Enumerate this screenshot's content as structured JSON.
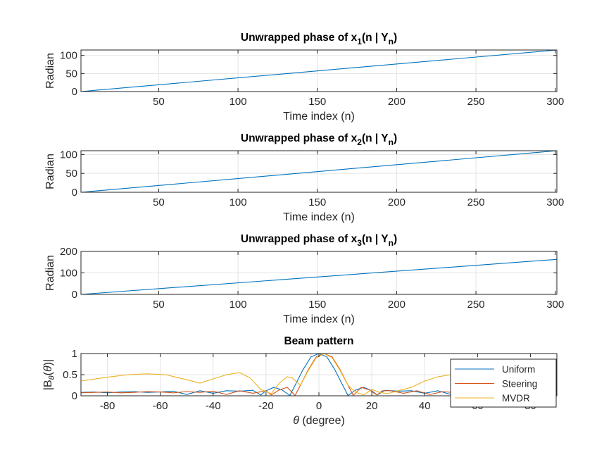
{
  "chart_data": [
    {
      "type": "line",
      "title": "Unwrapped phase of x1(n | Yn)",
      "title_parts": {
        "pre": "Unwrapped phase of x",
        "sub1": "1",
        "mid": "(n | Y",
        "sub2": "n",
        "post": ")"
      },
      "xlabel": "Time index (n)",
      "ylabel": "Radian",
      "xlim": [
        1,
        301
      ],
      "ylim": [
        0,
        115
      ],
      "xticks": [
        50,
        100,
        150,
        200,
        250,
        300
      ],
      "yticks": [
        0,
        50,
        100
      ],
      "grid": true,
      "series": [
        {
          "color": "#0072BD",
          "x": [
            1,
            301
          ],
          "y": [
            0,
            115
          ]
        }
      ]
    },
    {
      "type": "line",
      "title": "Unwrapped phase of x2(n | Yn)",
      "title_parts": {
        "pre": "Unwrapped phase of x",
        "sub1": "2",
        "mid": "(n | Y",
        "sub2": "n",
        "post": ")"
      },
      "xlabel": "Time index (n)",
      "ylabel": "Radian",
      "xlim": [
        1,
        301
      ],
      "ylim": [
        0,
        110
      ],
      "xticks": [
        50,
        100,
        150,
        200,
        250,
        300
      ],
      "yticks": [
        0,
        50,
        100
      ],
      "grid": true,
      "series": [
        {
          "color": "#0072BD",
          "x": [
            1,
            301
          ],
          "y": [
            0,
            110
          ]
        }
      ]
    },
    {
      "type": "line",
      "title": "Unwrapped phase of x3(n | Yn)",
      "title_parts": {
        "pre": "Unwrapped phase of x",
        "sub1": "3",
        "mid": "(n | Y",
        "sub2": "n",
        "post": ")"
      },
      "xlabel": "Time index (n)",
      "ylabel": "Radian",
      "xlim": [
        1,
        301
      ],
      "ylim": [
        0,
        200
      ],
      "xticks": [
        50,
        100,
        150,
        200,
        250,
        300
      ],
      "yticks": [
        0,
        100,
        200
      ],
      "grid": true,
      "series": [
        {
          "color": "#0072BD",
          "x": [
            1,
            301
          ],
          "y": [
            0,
            163
          ]
        }
      ]
    },
    {
      "type": "line",
      "title": "Beam pattern",
      "xlabel": "θ (degree)",
      "ylabel": "|Bθ(θ)|",
      "xlim": [
        -90,
        90
      ],
      "ylim": [
        0,
        1
      ],
      "xticks": [
        -80,
        -60,
        -40,
        -20,
        0,
        20,
        40,
        60,
        80
      ],
      "yticks": [
        0,
        0.5,
        1
      ],
      "grid": true,
      "legend": "top-right",
      "series": [
        {
          "name": "Uniform",
          "color": "#0072BD",
          "x": [
            -90,
            -85,
            -80,
            -75,
            -70,
            -65,
            -60,
            -55,
            -50,
            -45,
            -40,
            -35,
            -30,
            -25,
            -22,
            -20,
            -17,
            -14,
            -11,
            -9,
            -6,
            -3,
            0,
            3,
            6,
            9,
            11,
            14,
            17,
            20,
            22,
            25,
            30,
            35,
            40,
            45,
            50,
            55,
            60,
            65,
            70,
            75,
            80,
            85,
            90
          ],
          "y": [
            0.08,
            0.09,
            0.07,
            0.09,
            0.1,
            0.08,
            0.09,
            0.11,
            0.03,
            0.12,
            0.06,
            0.12,
            0.11,
            0.13,
            0.02,
            0.12,
            0.2,
            0.14,
            0.01,
            0.25,
            0.62,
            0.92,
            1.0,
            0.92,
            0.62,
            0.25,
            0.01,
            0.14,
            0.2,
            0.12,
            0.02,
            0.13,
            0.11,
            0.12,
            0.06,
            0.12,
            0.03,
            0.11,
            0.09,
            0.08,
            0.1,
            0.09,
            0.07,
            0.09,
            0.08
          ]
        },
        {
          "name": "Steering",
          "color": "#D95319",
          "x": [
            -90,
            -85,
            -80,
            -75,
            -70,
            -65,
            -60,
            -55,
            -50,
            -45,
            -40,
            -35,
            -30,
            -25,
            -20,
            -18,
            -15,
            -12,
            -9,
            -7,
            -4,
            -1,
            2,
            5,
            8,
            11,
            13,
            16,
            19,
            22,
            24,
            27,
            32,
            37,
            42,
            47,
            52,
            57,
            62,
            67,
            72,
            77,
            82,
            87,
            90
          ],
          "y": [
            0.07,
            0.08,
            0.09,
            0.07,
            0.08,
            0.1,
            0.09,
            0.07,
            0.1,
            0.08,
            0.11,
            0.03,
            0.12,
            0.06,
            0.12,
            0.02,
            0.14,
            0.2,
            0.01,
            0.25,
            0.62,
            0.92,
            1.0,
            0.92,
            0.62,
            0.25,
            0.01,
            0.2,
            0.14,
            0.02,
            0.12,
            0.12,
            0.06,
            0.12,
            0.03,
            0.1,
            0.07,
            0.09,
            0.1,
            0.08,
            0.07,
            0.09,
            0.08,
            0.07,
            0.08
          ]
        },
        {
          "name": "MVDR",
          "color": "#EDB120",
          "x": [
            -90,
            -80,
            -72,
            -65,
            -58,
            -50,
            -45,
            -40,
            -35,
            -30,
            -26,
            -22,
            -18,
            -15,
            -12,
            -10,
            -7,
            -4,
            -1,
            2,
            5,
            8,
            11,
            14,
            17,
            20,
            23,
            26,
            30,
            35,
            40,
            45,
            50,
            55,
            60,
            65,
            70,
            75,
            80,
            85,
            90
          ],
          "y": [
            0.35,
            0.44,
            0.5,
            0.52,
            0.5,
            0.38,
            0.3,
            0.4,
            0.5,
            0.55,
            0.42,
            0.15,
            0.05,
            0.3,
            0.45,
            0.42,
            0.25,
            0.6,
            0.9,
            1.0,
            0.9,
            0.6,
            0.25,
            0.08,
            0.02,
            0.15,
            0.08,
            0.05,
            0.12,
            0.2,
            0.35,
            0.45,
            0.5,
            0.48,
            0.44,
            0.4,
            0.38,
            0.35,
            0.33,
            0.33,
            0.33
          ]
        }
      ]
    }
  ]
}
